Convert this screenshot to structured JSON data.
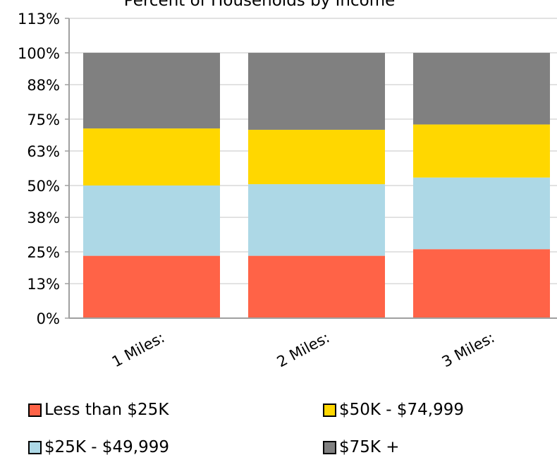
{
  "chart_data": {
    "type": "bar",
    "stacked": true,
    "title": "Percent of Households by Income",
    "categories": [
      "1 Miles:",
      "2 Miles:",
      "3 Miles:"
    ],
    "series": [
      {
        "name": "Less than $25K",
        "color": "#ff6347",
        "values": [
          23.5,
          23.5,
          26
        ]
      },
      {
        "name": "$25K - $49,999",
        "color": "#add8e6",
        "values": [
          26.5,
          27,
          27
        ]
      },
      {
        "name": "$50K - $74,999",
        "color": "#ffd700",
        "values": [
          21.5,
          20.5,
          20
        ]
      },
      {
        "name": "$75K +",
        "color": "#808080",
        "values": [
          28.5,
          29,
          27
        ]
      }
    ],
    "ylim": [
      0,
      113
    ],
    "yticks": [
      0,
      13,
      25,
      38,
      50,
      63,
      75,
      88,
      100,
      113
    ],
    "ytick_labels": [
      "0%",
      "13%",
      "25%",
      "38%",
      "50%",
      "63%",
      "75%",
      "88%",
      "100%",
      "113%"
    ],
    "grid": true,
    "legend_position": "bottom"
  },
  "legend": {
    "items": [
      {
        "label": "Less than $25K",
        "color": "#ff6347"
      },
      {
        "label": "$50K - $74,999",
        "color": "#ffd700"
      },
      {
        "label": "$25K - $49,999",
        "color": "#add8e6"
      },
      {
        "label": "$75K +",
        "color": "#808080"
      }
    ]
  }
}
